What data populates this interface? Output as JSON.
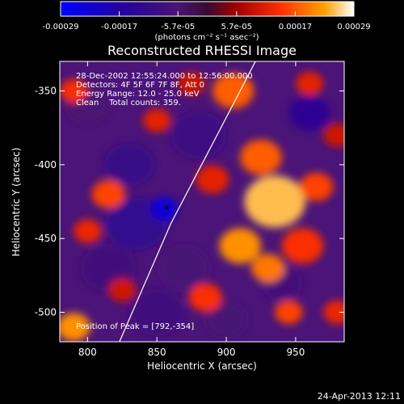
{
  "chart_data": {
    "type": "heatmap",
    "title": "Reconstructed RHESSI Image",
    "xlabel": "Heliocentric X (arcsec)",
    "ylabel": "Heliocentric Y (arcsec)",
    "xlim": [
      780,
      985
    ],
    "ylim": [
      -520,
      -330
    ],
    "x_ticks": [
      800,
      850,
      900,
      950
    ],
    "y_ticks": [
      -350,
      -400,
      -450,
      -500
    ],
    "colorbar": {
      "ticks": [
        "-0.00029",
        "-0.00017",
        "-5.7e-05",
        "5.7e-05",
        "0.00017",
        "0.00029"
      ],
      "unit_label": "(photons cm⁻² s⁻¹ asec⁻²)",
      "range": [
        -0.00029,
        0.00029
      ]
    },
    "annotations": [
      "28-Dec-2002 12:55:24.000 to 12:56:00.000",
      "Detectors: 4F 5F 6F 7F 8F, Att 0",
      "Energy Range: 12.0 - 25.0 keV",
      "Clean    Total counts: 359."
    ],
    "peak_label": "Position of Peak = [792,-354]",
    "peak_position": [
      792,
      -354
    ],
    "limb_curve": [
      [
        823,
        -520
      ],
      [
        860,
        -440
      ],
      [
        900,
        -368
      ],
      [
        921,
        -330
      ]
    ],
    "blobs": [
      [
        835,
        -440,
        22,
        -0.00013
      ],
      [
        855,
        -430,
        10,
        -0.00024
      ],
      [
        830,
        -400,
        18,
        -0.00011
      ],
      [
        880,
        -380,
        20,
        -0.0001
      ],
      [
        815,
        -470,
        20,
        -8e-05
      ],
      [
        870,
        -470,
        18,
        -7e-05
      ],
      [
        850,
        -500,
        20,
        -9e-05
      ],
      [
        800,
        -360,
        15,
        -6e-05
      ],
      [
        960,
        -365,
        15,
        -0.00014
      ],
      [
        940,
        -480,
        15,
        -8e-05
      ],
      [
        900,
        -505,
        15,
        -7e-05
      ],
      [
        935,
        -425,
        22,
        0.00025
      ],
      [
        910,
        -455,
        15,
        0.00022
      ],
      [
        925,
        -395,
        15,
        0.00018
      ],
      [
        890,
        -410,
        12,
        0.00012
      ],
      [
        905,
        -350,
        15,
        0.00018
      ],
      [
        965,
        -415,
        12,
        0.00016
      ],
      [
        955,
        -455,
        15,
        0.00014
      ],
      [
        960,
        -345,
        10,
        0.00012
      ],
      [
        875,
        -345,
        10,
        0.0001
      ],
      [
        850,
        -370,
        10,
        0.00012
      ],
      [
        815,
        -420,
        12,
        0.00016
      ],
      [
        800,
        -445,
        10,
        0.00013
      ],
      [
        790,
        -350,
        10,
        0.00014
      ],
      [
        790,
        -510,
        12,
        0.00022
      ],
      [
        825,
        -485,
        10,
        0.0001
      ],
      [
        885,
        -490,
        12,
        0.00014
      ],
      [
        945,
        -500,
        10,
        0.00016
      ],
      [
        980,
        -500,
        10,
        0.00013
      ],
      [
        980,
        -380,
        10,
        0.0001
      ],
      [
        930,
        -470,
        12,
        0.0002
      ]
    ]
  },
  "footer": {
    "date": "24-Apr-2013 12:11"
  }
}
